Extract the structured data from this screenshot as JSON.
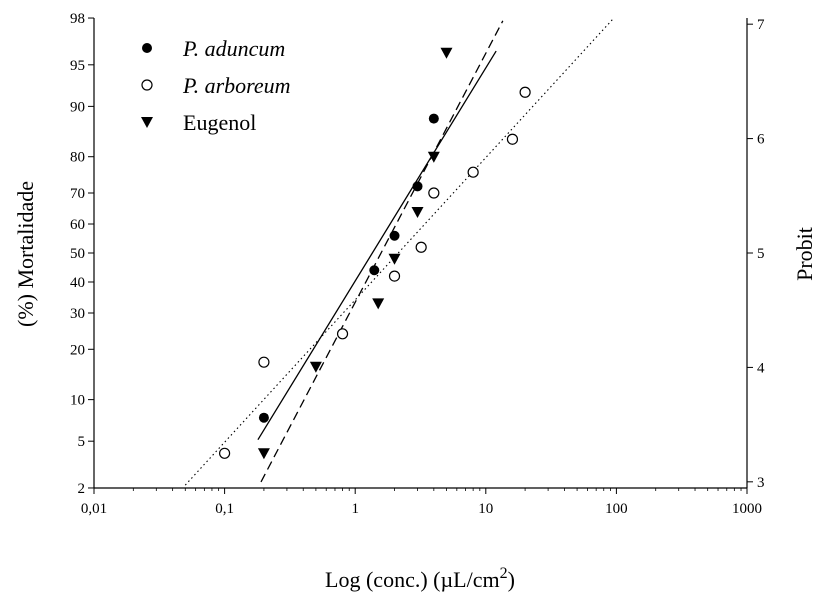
{
  "chart_data": {
    "type": "scatter",
    "xlabel_main": "Log (conc.) (µL/cm",
    "xlabel_sup": "2",
    "xlabel_close": ")",
    "ylabel": "(%) Mortalidade",
    "y2label": "Probit",
    "xscale": "log",
    "xlim": [
      0.01,
      1000
    ],
    "x_ticks": [
      0.01,
      0.1,
      1,
      10,
      100,
      1000
    ],
    "x_tick_labels": [
      "0,01",
      "0,1",
      "1",
      "10",
      "100",
      "1000"
    ],
    "ylim_probit": [
      2.946,
      7.054
    ],
    "y_ticks": [
      2,
      5,
      10,
      20,
      30,
      40,
      50,
      60,
      70,
      80,
      90,
      95,
      98
    ],
    "y_tick_labels": [
      "2",
      "5",
      "10",
      "20",
      "30",
      "40",
      "50",
      "60",
      "70",
      "80",
      "90",
      "95",
      "98"
    ],
    "y2_ticks": [
      3,
      4,
      5,
      6,
      7
    ],
    "y2_tick_labels": [
      "3",
      "4",
      "5",
      "6",
      "7"
    ],
    "legend_position": "top-left",
    "series": [
      {
        "name": "P. aduncum",
        "marker": "filled-circle",
        "line": "solid",
        "x": [
          0.2,
          1.4,
          2,
          3,
          4
        ],
        "y": [
          7.5,
          44,
          56,
          72,
          88
        ],
        "fit_x": [
          0.18,
          12
        ]
      },
      {
        "name": "P. arboreum",
        "marker": "open-circle",
        "line": "dotted",
        "x": [
          0.1,
          0.2,
          0.8,
          2,
          3.2,
          4,
          8,
          16,
          20
        ],
        "y": [
          4,
          17,
          24,
          42,
          52,
          70,
          76,
          84,
          92
        ],
        "fit_x": [
          0.05,
          140
        ]
      },
      {
        "name": "Eugenol",
        "marker": "filled-triangle-down",
        "line": "dashed",
        "x": [
          0.2,
          0.5,
          1.5,
          2,
          3,
          4,
          5
        ],
        "y": [
          4,
          16,
          33,
          48,
          64,
          80,
          96
        ],
        "fit_x": [
          0.19,
          13.5
        ]
      }
    ]
  }
}
